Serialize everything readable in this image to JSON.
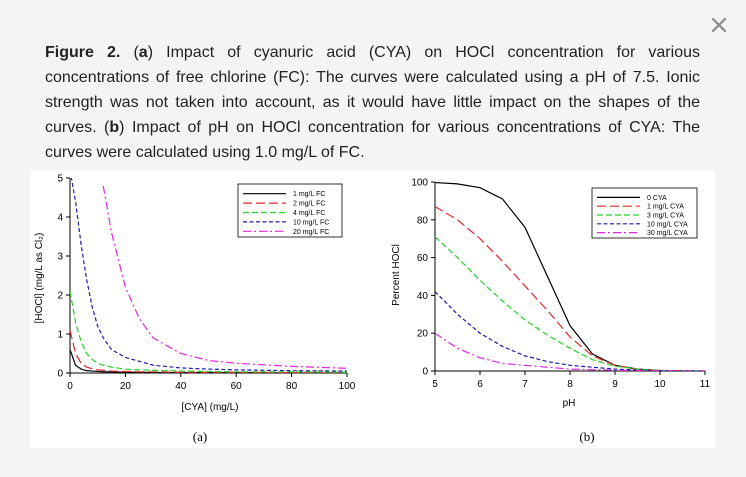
{
  "caption": [
    {
      "text": "Figure 2.",
      "bold": true
    },
    {
      "text": " ("
    },
    {
      "text": "a",
      "bold": true
    },
    {
      "text": ") Impact of cyanuric acid (CYA) on HOCl concentration for various concentrations of free chlorine (FC): The curves were calculated using a pH of 7.5. Ionic strength was not taken into account, as it would have little impact on the shapes of the curves. ("
    },
    {
      "text": "b",
      "bold": true
    },
    {
      "text": ") Impact of pH on HOCl concentration for various concentrations of CYA: The curves were calculated using 1.0 mg/L of FC."
    }
  ],
  "chart_data": [
    {
      "type": "line",
      "panel_label": "(a)",
      "xlabel": "[CYA] (mg/L)",
      "ylabel": "[HOCl] (mg/L as Cl₂)",
      "x": [
        0,
        2,
        4,
        6,
        8,
        10,
        12,
        15,
        20,
        25,
        30,
        40,
        50,
        60,
        80,
        100
      ],
      "xlim": [
        0,
        100
      ],
      "xticks": [
        0,
        20,
        40,
        60,
        80,
        100
      ],
      "ylim": [
        0,
        5
      ],
      "yticks": [
        0,
        1,
        2,
        3,
        4,
        5
      ],
      "series": [
        {
          "name": "1 mg/L FC",
          "color": "#000000",
          "dash": "solid",
          "values": [
            0.6,
            0.2,
            0.1,
            0.06,
            0.05,
            0.04,
            0.03,
            0.03,
            0.02,
            0.02,
            0.01,
            0.01,
            0.01,
            0.01,
            0,
            0
          ]
        },
        {
          "name": "2 mg/L FC",
          "color": "#e02828",
          "dash": "long-dash",
          "values": [
            1.1,
            0.5,
            0.25,
            0.15,
            0.11,
            0.08,
            0.07,
            0.05,
            0.04,
            0.03,
            0.03,
            0.02,
            0.02,
            0.02,
            0.01,
            0.01
          ]
        },
        {
          "name": "4 mg/L FC",
          "color": "#28d028",
          "dash": "dash",
          "values": [
            2.1,
            1.3,
            0.8,
            0.5,
            0.35,
            0.25,
            0.2,
            0.15,
            0.1,
            0.08,
            0.07,
            0.05,
            0.04,
            0.03,
            0.03,
            0.02
          ]
        },
        {
          "name": "10 mg/L FC",
          "color": "#1c1ca8",
          "dash": "short-dash",
          "values": [
            5.2,
            4.4,
            3.3,
            2.4,
            1.7,
            1.2,
            0.9,
            0.6,
            0.4,
            0.3,
            0.2,
            0.13,
            0.1,
            0.08,
            0.06,
            0.05
          ]
        },
        {
          "name": "20 mg/L FC",
          "color": "#e028e0",
          "dash": "dash-dot",
          "values": [
            null,
            null,
            null,
            null,
            null,
            null,
            4.8,
            3.6,
            2.2,
            1.4,
            0.9,
            0.5,
            0.32,
            0.25,
            0.17,
            0.12
          ]
        }
      ]
    },
    {
      "type": "line",
      "panel_label": "(b)",
      "xlabel": "pH",
      "ylabel": "Percent HOCl",
      "x": [
        5,
        5.5,
        6,
        6.5,
        7,
        7.5,
        8,
        8.5,
        9,
        9.5,
        10,
        10.5,
        11
      ],
      "xlim": [
        5,
        11
      ],
      "xticks": [
        5,
        6,
        7,
        8,
        9,
        10,
        11
      ],
      "ylim": [
        0,
        100
      ],
      "yticks": [
        0,
        20,
        40,
        60,
        80,
        100
      ],
      "series": [
        {
          "name": "0 CYA",
          "color": "#000000",
          "dash": "solid",
          "values": [
            99.7,
            99,
            97,
            91,
            76,
            50,
            24,
            9,
            3,
            1,
            0.3,
            0.1,
            0
          ]
        },
        {
          "name": "1 mg/L CYA",
          "color": "#e02828",
          "dash": "long-dash",
          "values": [
            87,
            80,
            70,
            58,
            45,
            32,
            18,
            8,
            3,
            1,
            0.3,
            0.1,
            0
          ]
        },
        {
          "name": "3 mg/L CYA",
          "color": "#28d028",
          "dash": "dash",
          "values": [
            71,
            60,
            48,
            37,
            27,
            19,
            12,
            6,
            2.5,
            1,
            0.3,
            0.1,
            0
          ]
        },
        {
          "name": "10 mg/L CYA",
          "color": "#1c1ca8",
          "dash": "short-dash",
          "values": [
            42,
            30,
            20,
            13,
            8,
            5,
            3,
            2,
            1,
            0.5,
            0.2,
            0.1,
            0
          ]
        },
        {
          "name": "30 mg/L CYA",
          "color": "#e028e0",
          "dash": "dash-dot",
          "values": [
            20,
            12,
            7,
            4,
            3,
            2,
            1,
            0.7,
            0.4,
            0.2,
            0.1,
            0,
            0
          ]
        }
      ]
    }
  ]
}
